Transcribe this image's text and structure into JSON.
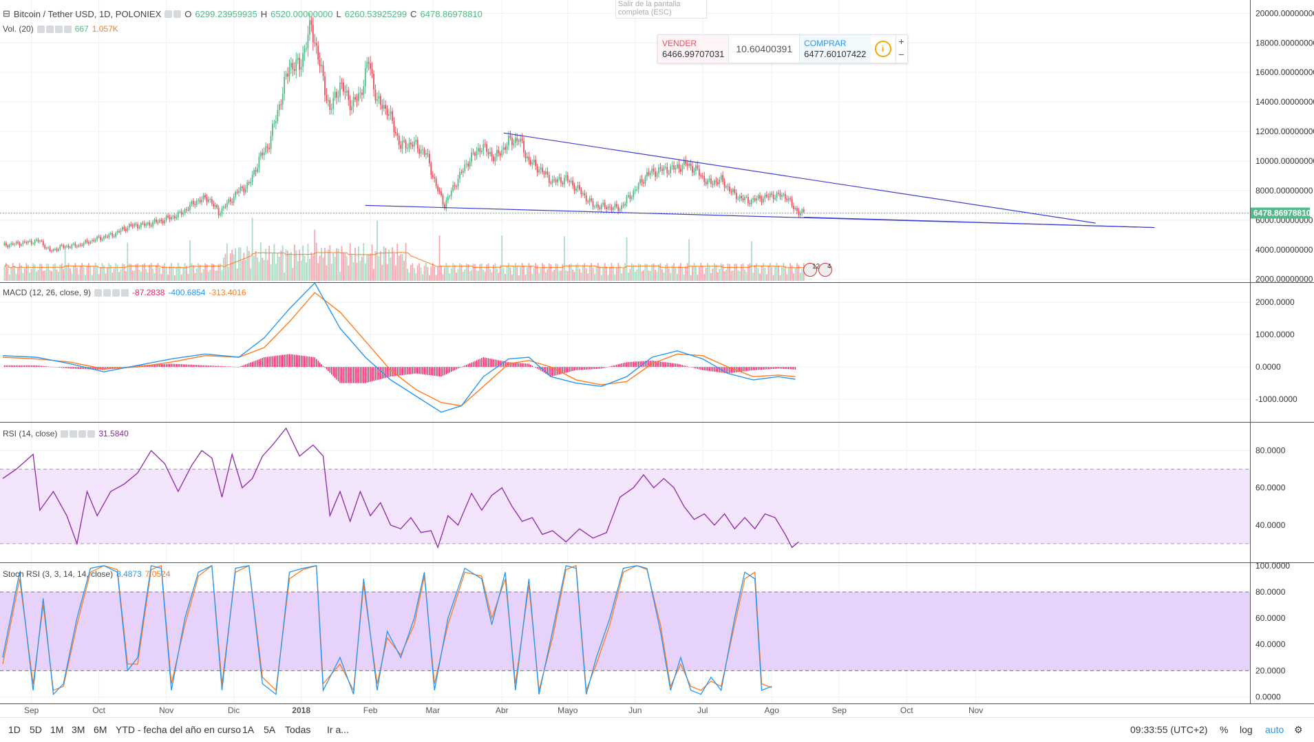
{
  "header": {
    "symbol": "Bitcoin / Tether USD, 1D, POLONIEX",
    "o_label": "O",
    "o": "6299.23959935",
    "h_label": "H",
    "h": "6520.00000000",
    "l_label": "L",
    "l": "6260.53925299",
    "c_label": "C",
    "c": "6478.86978810"
  },
  "volume_legend": {
    "title": "Vol. (20)",
    "v1": "667",
    "v2": "1.057K"
  },
  "fullscreen_tip": "Salir de la pantalla completa (ESC)",
  "trade": {
    "sell_label": "VENDER",
    "sell_value": "6466.99707031",
    "spread": "10.60400391",
    "buy_label": "COMPRAR",
    "buy_value": "6477.60107422",
    "info_icon": "info-icon",
    "plus": "+",
    "minus": "−"
  },
  "macd_legend": {
    "title": "MACD (12, 26, close, 9)",
    "v1": "-87.2838",
    "v2": "-400.6854",
    "v3": "-313.4016"
  },
  "rsi_legend": {
    "title": "RSI (14, close)",
    "v1": "31.5840"
  },
  "stoch_legend": {
    "title": "Stoch RSI (3, 3, 14, 14, close)",
    "v1": "8.4873",
    "v2": "7.0524"
  },
  "events": {
    "count_a": "12",
    "count_b": "4"
  },
  "bottom_bar": {
    "timeframes": [
      "1D",
      "5D",
      "1M",
      "3M",
      "6M",
      "YTD - fecha del año en curso",
      "1A",
      "5A",
      "Todas"
    ],
    "goto": "Ir a...",
    "clock": "09:33:55 (UTC+2)",
    "percent": "%",
    "log": "log",
    "auto": "auto"
  },
  "colors": {
    "up": "#53b987",
    "down": "#eb4d5c",
    "trend": "#3b3bd6",
    "macd": "#2196f3",
    "signal": "#ff7a1a",
    "hist": "#e91e63",
    "rsi": "#8e24aa",
    "stoch_k": "#2196f3",
    "stoch_d": "#ff7a1a"
  },
  "chart_data": {
    "type": "candlestick",
    "title": "Bitcoin / Tether USD, 1D, POLONIEX",
    "x_ticks": [
      "Sep",
      "Oct",
      "Nov",
      "Dic",
      "2018",
      "Feb",
      "Mar",
      "Abr",
      "Mayo",
      "Jun",
      "Jul",
      "Ago",
      "Sep",
      "Oct",
      "Nov"
    ],
    "price_axis": [
      "20000.00000000",
      "18000.00000000",
      "16000.00000000",
      "14000.00000000",
      "12000.00000000",
      "10000.00000000",
      "8000.00000000",
      "6000.00000000",
      "4000.00000000",
      "2000.00000000"
    ],
    "price_ylim": [
      1800,
      20900
    ],
    "last_price": "6478.86978810",
    "price_path": [
      [
        0,
        4300
      ],
      [
        8,
        4400
      ],
      [
        15,
        4500
      ],
      [
        22,
        4600
      ],
      [
        28,
        3900
      ],
      [
        35,
        4200
      ],
      [
        45,
        4300
      ],
      [
        55,
        4700
      ],
      [
        65,
        5000
      ],
      [
        75,
        5600
      ],
      [
        85,
        5700
      ],
      [
        95,
        6000
      ],
      [
        105,
        6400
      ],
      [
        115,
        7300
      ],
      [
        122,
        7500
      ],
      [
        128,
        6500
      ],
      [
        134,
        7200
      ],
      [
        140,
        8000
      ],
      [
        146,
        8400
      ],
      [
        152,
        10100
      ],
      [
        158,
        11200
      ],
      [
        164,
        13800
      ],
      [
        170,
        16500
      ],
      [
        176,
        16400
      ],
      [
        183,
        19200
      ],
      [
        188,
        16500
      ],
      [
        194,
        13400
      ],
      [
        200,
        15200
      ],
      [
        207,
        13800
      ],
      [
        212,
        14500
      ],
      [
        217,
        16800
      ],
      [
        222,
        14000
      ],
      [
        228,
        13500
      ],
      [
        236,
        11000
      ],
      [
        243,
        11200
      ],
      [
        251,
        10500
      ],
      [
        257,
        8300
      ],
      [
        262,
        7000
      ],
      [
        268,
        8400
      ],
      [
        276,
        10000
      ],
      [
        284,
        11000
      ],
      [
        292,
        10200
      ],
      [
        300,
        11300
      ],
      [
        306,
        11500
      ],
      [
        312,
        10000
      ],
      [
        318,
        9500
      ],
      [
        326,
        8600
      ],
      [
        334,
        8800
      ],
      [
        342,
        8000
      ],
      [
        350,
        7000
      ],
      [
        358,
        6900
      ],
      [
        366,
        6800
      ],
      [
        374,
        7900
      ],
      [
        382,
        9100
      ],
      [
        390,
        9400
      ],
      [
        398,
        9500
      ],
      [
        406,
        9800
      ],
      [
        412,
        9300
      ],
      [
        418,
        8500
      ],
      [
        426,
        8700
      ],
      [
        434,
        7700
      ],
      [
        442,
        7300
      ],
      [
        450,
        7500
      ],
      [
        458,
        7700
      ],
      [
        465,
        7600
      ],
      [
        469,
        6800
      ],
      [
        473,
        6500
      ],
      [
        475,
        6479
      ]
    ],
    "trendlines": [
      {
        "name": "upper",
        "from": [
          297,
          11900
        ],
        "to": [
          648,
          5800
        ]
      },
      {
        "name": "lower",
        "from": [
          215,
          7000
        ],
        "to": [
          683,
          5500
        ]
      },
      {
        "name": "lower-ext",
        "from": [
          475,
          6200
        ],
        "to": [
          683,
          5500
        ]
      }
    ],
    "macd_axis": [
      "2000.0000",
      "1000.0000",
      "0.0000",
      "-1000.0000"
    ],
    "macd_ylim": [
      -1700,
      2600
    ],
    "macd_line": [
      [
        0,
        350
      ],
      [
        20,
        300
      ],
      [
        40,
        100
      ],
      [
        60,
        -150
      ],
      [
        80,
        50
      ],
      [
        100,
        250
      ],
      [
        120,
        400
      ],
      [
        140,
        300
      ],
      [
        155,
        900
      ],
      [
        170,
        1800
      ],
      [
        185,
        2600
      ],
      [
        200,
        1200
      ],
      [
        215,
        300
      ],
      [
        230,
        -400
      ],
      [
        245,
        -900
      ],
      [
        260,
        -1400
      ],
      [
        272,
        -1200
      ],
      [
        285,
        -300
      ],
      [
        300,
        250
      ],
      [
        312,
        300
      ],
      [
        325,
        -300
      ],
      [
        340,
        -500
      ],
      [
        355,
        -600
      ],
      [
        370,
        -300
      ],
      [
        385,
        300
      ],
      [
        400,
        500
      ],
      [
        415,
        250
      ],
      [
        430,
        -200
      ],
      [
        445,
        -400
      ],
      [
        460,
        -300
      ],
      [
        470,
        -380
      ]
    ],
    "signal_line": [
      [
        0,
        300
      ],
      [
        20,
        250
      ],
      [
        40,
        150
      ],
      [
        60,
        -60
      ],
      [
        80,
        0
      ],
      [
        100,
        150
      ],
      [
        120,
        350
      ],
      [
        140,
        300
      ],
      [
        155,
        600
      ],
      [
        170,
        1400
      ],
      [
        185,
        2300
      ],
      [
        200,
        1700
      ],
      [
        215,
        800
      ],
      [
        230,
        -100
      ],
      [
        245,
        -700
      ],
      [
        260,
        -1100
      ],
      [
        272,
        -1200
      ],
      [
        285,
        -600
      ],
      [
        300,
        100
      ],
      [
        312,
        200
      ],
      [
        325,
        0
      ],
      [
        340,
        -400
      ],
      [
        355,
        -550
      ],
      [
        370,
        -450
      ],
      [
        385,
        100
      ],
      [
        400,
        400
      ],
      [
        415,
        350
      ],
      [
        430,
        0
      ],
      [
        445,
        -300
      ],
      [
        460,
        -250
      ],
      [
        470,
        -300
      ]
    ],
    "rsi_axis": [
      "80.0000",
      "60.0000",
      "40.0000"
    ],
    "rsi_ylim": [
      20,
      95
    ],
    "rsi_band": [
      30,
      70
    ],
    "rsi": [
      [
        0,
        65
      ],
      [
        8,
        70
      ],
      [
        18,
        78
      ],
      [
        22,
        48
      ],
      [
        30,
        58
      ],
      [
        38,
        45
      ],
      [
        44,
        30
      ],
      [
        50,
        58
      ],
      [
        56,
        45
      ],
      [
        64,
        58
      ],
      [
        72,
        62
      ],
      [
        80,
        68
      ],
      [
        88,
        80
      ],
      [
        96,
        73
      ],
      [
        104,
        58
      ],
      [
        112,
        72
      ],
      [
        118,
        80
      ],
      [
        124,
        76
      ],
      [
        130,
        55
      ],
      [
        136,
        78
      ],
      [
        142,
        60
      ],
      [
        148,
        65
      ],
      [
        154,
        77
      ],
      [
        160,
        83
      ],
      [
        168,
        92
      ],
      [
        176,
        77
      ],
      [
        184,
        83
      ],
      [
        190,
        77
      ],
      [
        194,
        45
      ],
      [
        200,
        58
      ],
      [
        206,
        42
      ],
      [
        212,
        58
      ],
      [
        218,
        45
      ],
      [
        224,
        52
      ],
      [
        230,
        40
      ],
      [
        236,
        38
      ],
      [
        242,
        44
      ],
      [
        248,
        36
      ],
      [
        254,
        37
      ],
      [
        258,
        28
      ],
      [
        264,
        45
      ],
      [
        270,
        40
      ],
      [
        278,
        57
      ],
      [
        284,
        48
      ],
      [
        290,
        56
      ],
      [
        296,
        60
      ],
      [
        302,
        50
      ],
      [
        308,
        42
      ],
      [
        314,
        44
      ],
      [
        320,
        35
      ],
      [
        326,
        37
      ],
      [
        334,
        31
      ],
      [
        342,
        38
      ],
      [
        350,
        33
      ],
      [
        358,
        36
      ],
      [
        366,
        55
      ],
      [
        374,
        60
      ],
      [
        380,
        67
      ],
      [
        386,
        60
      ],
      [
        392,
        65
      ],
      [
        398,
        60
      ],
      [
        404,
        50
      ],
      [
        410,
        43
      ],
      [
        416,
        46
      ],
      [
        422,
        40
      ],
      [
        428,
        46
      ],
      [
        434,
        38
      ],
      [
        440,
        44
      ],
      [
        446,
        38
      ],
      [
        452,
        46
      ],
      [
        458,
        44
      ],
      [
        464,
        35
      ],
      [
        468,
        28
      ],
      [
        472,
        31
      ]
    ],
    "stoch_axis": [
      "100.0000",
      "80.0000",
      "60.0000",
      "40.0000",
      "20.0000",
      "0.0000"
    ],
    "stoch_ylim": [
      -5,
      102
    ],
    "stoch_band": [
      20,
      80
    ],
    "stoch_k": [
      [
        0,
        30
      ],
      [
        10,
        95
      ],
      [
        18,
        5
      ],
      [
        24,
        75
      ],
      [
        30,
        2
      ],
      [
        36,
        10
      ],
      [
        44,
        60
      ],
      [
        52,
        98
      ],
      [
        60,
        100
      ],
      [
        68,
        95
      ],
      [
        74,
        20
      ],
      [
        80,
        30
      ],
      [
        88,
        100
      ],
      [
        94,
        98
      ],
      [
        100,
        5
      ],
      [
        108,
        60
      ],
      [
        116,
        95
      ],
      [
        124,
        100
      ],
      [
        130,
        5
      ],
      [
        138,
        98
      ],
      [
        146,
        100
      ],
      [
        154,
        10
      ],
      [
        162,
        2
      ],
      [
        170,
        95
      ],
      [
        178,
        98
      ],
      [
        186,
        100
      ],
      [
        190,
        5
      ],
      [
        200,
        30
      ],
      [
        208,
        2
      ],
      [
        214,
        90
      ],
      [
        222,
        5
      ],
      [
        228,
        50
      ],
      [
        236,
        30
      ],
      [
        244,
        60
      ],
      [
        250,
        95
      ],
      [
        256,
        5
      ],
      [
        264,
        60
      ],
      [
        274,
        98
      ],
      [
        284,
        90
      ],
      [
        290,
        55
      ],
      [
        298,
        95
      ],
      [
        304,
        5
      ],
      [
        312,
        90
      ],
      [
        318,
        2
      ],
      [
        326,
        50
      ],
      [
        334,
        100
      ],
      [
        340,
        98
      ],
      [
        346,
        2
      ],
      [
        352,
        30
      ],
      [
        360,
        60
      ],
      [
        368,
        98
      ],
      [
        376,
        100
      ],
      [
        382,
        98
      ],
      [
        390,
        50
      ],
      [
        396,
        5
      ],
      [
        402,
        30
      ],
      [
        408,
        5
      ],
      [
        414,
        2
      ],
      [
        420,
        15
      ],
      [
        426,
        5
      ],
      [
        434,
        60
      ],
      [
        440,
        95
      ],
      [
        446,
        90
      ],
      [
        450,
        5
      ],
      [
        456,
        8
      ]
    ],
    "stoch_d": [
      [
        0,
        25
      ],
      [
        10,
        90
      ],
      [
        18,
        10
      ],
      [
        24,
        70
      ],
      [
        30,
        5
      ],
      [
        36,
        8
      ],
      [
        44,
        55
      ],
      [
        52,
        95
      ],
      [
        60,
        100
      ],
      [
        68,
        97
      ],
      [
        74,
        25
      ],
      [
        80,
        25
      ],
      [
        88,
        97
      ],
      [
        94,
        100
      ],
      [
        100,
        10
      ],
      [
        108,
        55
      ],
      [
        116,
        92
      ],
      [
        124,
        100
      ],
      [
        130,
        10
      ],
      [
        138,
        95
      ],
      [
        146,
        100
      ],
      [
        154,
        15
      ],
      [
        162,
        5
      ],
      [
        170,
        90
      ],
      [
        178,
        97
      ],
      [
        186,
        100
      ],
      [
        190,
        10
      ],
      [
        200,
        25
      ],
      [
        208,
        5
      ],
      [
        214,
        85
      ],
      [
        222,
        10
      ],
      [
        228,
        45
      ],
      [
        236,
        32
      ],
      [
        244,
        55
      ],
      [
        250,
        92
      ],
      [
        256,
        10
      ],
      [
        264,
        55
      ],
      [
        274,
        95
      ],
      [
        284,
        92
      ],
      [
        290,
        60
      ],
      [
        298,
        90
      ],
      [
        304,
        10
      ],
      [
        312,
        85
      ],
      [
        318,
        5
      ],
      [
        326,
        45
      ],
      [
        334,
        97
      ],
      [
        340,
        100
      ],
      [
        346,
        5
      ],
      [
        352,
        25
      ],
      [
        360,
        55
      ],
      [
        368,
        95
      ],
      [
        376,
        100
      ],
      [
        382,
        97
      ],
      [
        390,
        55
      ],
      [
        396,
        8
      ],
      [
        402,
        25
      ],
      [
        408,
        8
      ],
      [
        414,
        5
      ],
      [
        420,
        12
      ],
      [
        426,
        8
      ],
      [
        434,
        55
      ],
      [
        440,
        90
      ],
      [
        446,
        95
      ],
      [
        450,
        10
      ],
      [
        456,
        7
      ]
    ]
  }
}
